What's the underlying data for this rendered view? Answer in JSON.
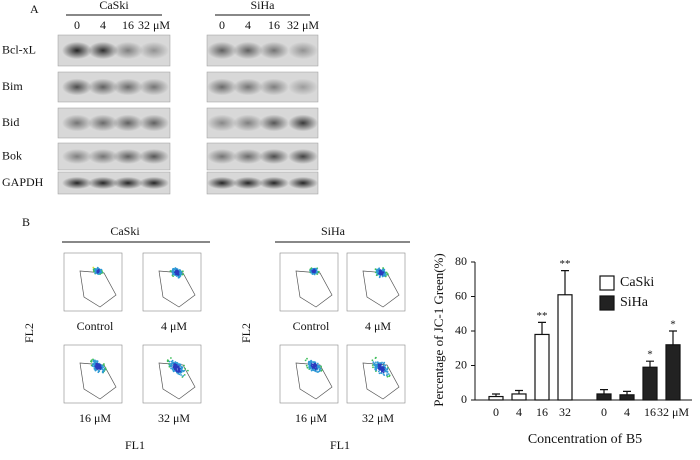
{
  "panel_a": {
    "label": "A",
    "groups": [
      {
        "name": "CaSki",
        "doses": [
          "0",
          "4",
          "16",
          "32 μM"
        ]
      },
      {
        "name": "SiHa",
        "doses": [
          "0",
          "4",
          "16",
          "32 μM"
        ]
      }
    ],
    "proteins": [
      "Bcl-xL",
      "Bim",
      "Bid",
      "Bok",
      "GAPDH"
    ]
  },
  "panel_b": {
    "label": "B",
    "flow": [
      {
        "name": "CaSki",
        "conditions": [
          "Control",
          "4 μM",
          "16 μM",
          "32 μM"
        ]
      },
      {
        "name": "SiHa",
        "conditions": [
          "Control",
          "4 μM",
          "16 μM",
          "32 μM"
        ]
      }
    ],
    "y_label": "FL2",
    "x_label": "FL1"
  },
  "chart_data": {
    "type": "bar",
    "ylabel": "Percentage of JC-1 Green(%)",
    "xlabel": "Concentration of B5",
    "categories": [
      "0",
      "4",
      "16",
      "32",
      "0",
      "4",
      "16",
      "32 μM"
    ],
    "series": [
      {
        "name": "CaSki",
        "color": "#ffffff",
        "values": [
          2,
          3.5,
          38,
          61,
          null,
          null,
          null,
          null
        ],
        "errors": [
          1.5,
          2,
          7,
          14,
          null,
          null,
          null,
          null
        ],
        "significance": [
          null,
          null,
          "**",
          "**",
          null,
          null,
          null,
          null
        ]
      },
      {
        "name": "SiHa",
        "color": "#222222",
        "values": [
          null,
          null,
          null,
          null,
          3.5,
          3,
          19,
          32
        ],
        "errors": [
          null,
          null,
          null,
          null,
          2.5,
          2,
          3.5,
          8
        ],
        "significance": [
          null,
          null,
          null,
          null,
          null,
          null,
          "*",
          "*"
        ]
      }
    ],
    "ylim": [
      0,
      80
    ],
    "yticks": [
      0,
      20,
      40,
      60,
      80
    ],
    "grid": false,
    "legend": "upper-right"
  }
}
